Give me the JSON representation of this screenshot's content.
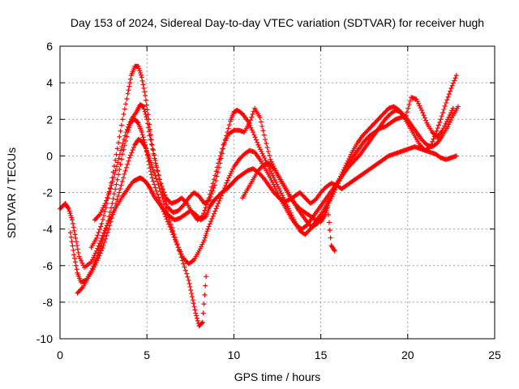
{
  "chart_data": {
    "type": "scatter",
    "title": "Day 153 of 2024, Sidereal Day-to-day VTEC variation (SDTVAR) for receiver hugh",
    "xlabel": "GPS time / hours",
    "ylabel": "SDTVAR / TECUs",
    "xlim": [
      0,
      25
    ],
    "ylim": [
      -10,
      6
    ],
    "xticks": [
      "0",
      "5",
      "10",
      "15",
      "20",
      "25"
    ],
    "yticks": [
      "-10",
      "-8",
      "-6",
      "-4",
      "-2",
      "0",
      "2",
      "4",
      "6"
    ],
    "grid": true,
    "marker": "plus",
    "color": "#ff0000",
    "series": [
      {
        "x": [
          0.0,
          0.3,
          0.5,
          0.7,
          0.9,
          1.1,
          1.4,
          1.8,
          2.1,
          2.4,
          2.7,
          3.0,
          3.3,
          3.6,
          3.9,
          4.2,
          4.4,
          4.6,
          4.8,
          5.0,
          5.2,
          5.4,
          5.7,
          6.0,
          6.3,
          6.6,
          6.9,
          7.2,
          7.5,
          7.8,
          8.1,
          8.4,
          8.6,
          8.8,
          9.0,
          9.3,
          9.6,
          9.8,
          10.0,
          10.2,
          10.5,
          10.8,
          11.1,
          11.4,
          11.7,
          12.0,
          12.3,
          12.6,
          12.9,
          13.2,
          13.5,
          13.8,
          14.1,
          14.4,
          14.7,
          15.0,
          15.3,
          15.6,
          15.9,
          16.2,
          16.5,
          16.8,
          17.1,
          17.4,
          17.7,
          18.0,
          18.3,
          18.6,
          18.9,
          19.2,
          19.5,
          19.8,
          20.1,
          20.4,
          20.7,
          21.0,
          21.3,
          21.6,
          21.9,
          22.2,
          22.5,
          22.8
        ],
        "y": [
          -2.9,
          -2.6,
          -2.9,
          -3.5,
          -4.5,
          -5.5,
          -6.1,
          -5.8,
          -5.2,
          -4.5,
          -3.8,
          -3.2,
          -2.7,
          -2.2,
          -1.8,
          -1.4,
          -1.3,
          -1.2,
          -1.3,
          -1.5,
          -1.8,
          -2.2,
          -2.6,
          -3.0,
          -3.3,
          -3.5,
          -3.4,
          -3.2,
          -3.0,
          -3.2,
          -3.5,
          -3.3,
          -2.8,
          -2.5,
          -2.3,
          -2.0,
          -1.8,
          -1.6,
          -1.4,
          -1.2,
          -1.0,
          -0.8,
          -0.7,
          -0.9,
          -1.2,
          -1.6,
          -2.0,
          -2.3,
          -2.5,
          -2.4,
          -2.2,
          -2.0,
          -2.3,
          -2.6,
          -2.4,
          -2.0,
          -1.7,
          -1.5,
          -1.6,
          -1.8,
          -1.6,
          -1.4,
          -1.2,
          -1.0,
          -0.8,
          -0.6,
          -0.4,
          -0.2,
          0.0,
          0.1,
          0.2,
          0.3,
          0.4,
          0.5,
          0.4,
          0.3,
          0.2,
          0.1,
          -0.1,
          -0.2,
          -0.1,
          0.0
        ]
      },
      {
        "x": [
          0.6,
          0.8,
          1.0,
          1.2,
          1.5,
          1.8,
          2.1,
          2.4,
          2.7,
          3.0,
          3.3,
          3.6,
          3.9,
          4.1,
          4.3,
          4.5,
          4.7,
          4.9,
          5.1,
          5.3,
          5.6,
          5.9,
          6.2,
          6.5,
          6.8,
          7.1,
          7.4,
          7.7,
          8.0,
          8.3,
          8.5,
          8.8,
          9.1,
          9.4,
          9.7,
          10.0,
          10.3,
          10.6,
          10.9,
          11.2,
          11.5,
          11.8,
          12.1,
          12.4,
          12.7,
          13.0,
          13.3,
          13.6,
          13.9,
          14.2,
          14.5,
          14.8,
          15.1,
          15.4,
          15.7,
          16.0,
          16.3,
          16.6,
          16.9,
          17.2,
          17.5,
          17.8,
          18.1,
          18.4,
          18.7,
          19.0,
          19.3,
          19.6,
          19.9,
          20.2,
          20.5,
          20.8,
          21.1,
          21.4,
          21.7,
          22.0,
          22.3,
          22.6,
          22.9
        ],
        "y": [
          -4.2,
          -5.4,
          -6.4,
          -6.9,
          -6.8,
          -6.3,
          -5.6,
          -4.8,
          -3.8,
          -2.6,
          -1.3,
          0.1,
          1.3,
          1.9,
          2.0,
          1.8,
          1.3,
          0.6,
          -0.3,
          -1.2,
          -2.1,
          -2.9,
          -3.6,
          -4.3,
          -5.0,
          -5.6,
          -5.9,
          -5.7,
          -5.2,
          -4.6,
          -4.0,
          -3.3,
          -2.6,
          -1.9,
          -1.2,
          -0.6,
          -0.2,
          0.1,
          0.3,
          0.2,
          -0.2,
          -0.7,
          -1.2,
          -1.8,
          -2.4,
          -2.9,
          -3.4,
          -3.8,
          -4.0,
          -3.8,
          -3.4,
          -3.0,
          -2.6,
          -2.2,
          -1.8,
          -1.4,
          -1.0,
          -0.6,
          -0.3,
          0.0,
          0.4,
          0.8,
          1.2,
          1.6,
          2.0,
          2.3,
          2.5,
          2.4,
          2.1,
          1.7,
          1.3,
          0.9,
          0.6,
          0.5,
          0.7,
          1.1,
          1.6,
          2.2,
          2.7
        ]
      },
      {
        "x": [
          1.0,
          1.3,
          1.6,
          1.9,
          2.2,
          2.5,
          2.8,
          3.1,
          3.4,
          3.7,
          4.0,
          4.3,
          4.5,
          4.7,
          4.9,
          5.1,
          5.3,
          5.6,
          5.9,
          6.2,
          6.5,
          6.8,
          7.1,
          7.4,
          7.6,
          7.8,
          8.0,
          8.2,
          8.4
        ],
        "y": [
          -7.5,
          -7.2,
          -6.7,
          -6.2,
          -5.6,
          -4.9,
          -4.0,
          -3.0,
          -2.0,
          -1.0,
          -0.1,
          0.6,
          0.9,
          0.8,
          0.5,
          0.0,
          -0.6,
          -1.4,
          -2.3,
          -3.2,
          -4.1,
          -5.0,
          -5.9,
          -6.8,
          -7.7,
          -8.6,
          -9.3,
          -9.1,
          -6.6
        ]
      },
      {
        "x": [
          1.8,
          2.1,
          2.4,
          2.7,
          3.0,
          3.3,
          3.6,
          3.9,
          4.1,
          4.3,
          4.5,
          4.7,
          4.9,
          5.1,
          5.3,
          5.6,
          5.9,
          6.2,
          6.5,
          6.8,
          7.1,
          7.4,
          7.7,
          8.0,
          8.3,
          8.6,
          8.9,
          9.2,
          9.5,
          9.8,
          10.0,
          10.2,
          10.5,
          10.8,
          11.1,
          11.4,
          11.7,
          12.0,
          12.3,
          12.6,
          12.9,
          13.2,
          13.5,
          13.8,
          14.1,
          14.4,
          14.7,
          15.0,
          15.3,
          15.6,
          15.9,
          16.2,
          16.5,
          16.8,
          17.1,
          17.4,
          17.7,
          18.0,
          18.3,
          18.6,
          18.9,
          19.2,
          19.5,
          19.8,
          20.1,
          20.4,
          20.7,
          21.0,
          21.3,
          21.6,
          21.9,
          22.2,
          22.5,
          22.8
        ],
        "y": [
          -5.0,
          -4.5,
          -3.7,
          -2.6,
          -1.2,
          0.4,
          2.0,
          3.4,
          4.4,
          4.9,
          4.9,
          4.3,
          3.3,
          2.0,
          0.6,
          -0.8,
          -2.0,
          -2.8,
          -3.1,
          -3.0,
          -2.7,
          -2.3,
          -2.0,
          -2.2,
          -2.6,
          -2.4,
          -1.6,
          -0.4,
          0.9,
          1.9,
          2.4,
          2.5,
          2.3,
          1.9,
          1.3,
          0.6,
          0.0,
          -0.6,
          -1.2,
          -1.8,
          -2.4,
          -3.0,
          -3.6,
          -4.1,
          -4.3,
          -4.0,
          -3.6,
          -3.2,
          -2.7,
          -2.2,
          -1.6,
          -1.0,
          -0.4,
          0.2,
          0.7,
          1.1,
          1.4,
          1.7,
          2.0,
          2.3,
          2.6,
          2.7,
          2.5,
          2.1,
          1.6,
          1.1,
          0.6,
          0.3,
          0.5,
          1.2,
          2.0,
          2.9,
          3.7,
          4.4
        ]
      },
      {
        "x": [
          2.0,
          2.3,
          2.6,
          2.9,
          3.2,
          3.5,
          3.8,
          4.1,
          4.4,
          4.6,
          4.8,
          5.0,
          5.2,
          5.5,
          5.8,
          6.1,
          6.4,
          6.7,
          7.0,
          7.3,
          7.6,
          7.9,
          8.2,
          8.5,
          8.8,
          9.1,
          9.4,
          9.7,
          10.0,
          10.3,
          10.6,
          10.9,
          11.2,
          11.5,
          11.8,
          12.1,
          12.4,
          12.7,
          13.0,
          13.3,
          13.6,
          13.9,
          14.2,
          14.5,
          14.8,
          15.1,
          15.4,
          15.7,
          16.0,
          16.3,
          16.6,
          16.9,
          17.2,
          17.5,
          17.8,
          18.1,
          18.4,
          18.7,
          19.0,
          19.3,
          19.6,
          19.9,
          20.2,
          20.5,
          20.8,
          21.1,
          21.4,
          21.7,
          22.0,
          22.3,
          22.6
        ],
        "y": [
          -3.5,
          -3.2,
          -2.6,
          -1.8,
          -0.8,
          0.3,
          1.3,
          2.0,
          2.4,
          2.8,
          2.7,
          2.0,
          0.9,
          -0.4,
          -1.5,
          -2.3,
          -2.6,
          -2.5,
          -2.3,
          -2.6,
          -3.1,
          -3.5,
          -3.3,
          -2.5,
          -1.5,
          -0.4,
          0.6,
          1.2,
          1.4,
          1.4,
          1.3,
          1.8,
          2.6,
          2.1,
          0.9,
          -0.2,
          -0.8,
          -1.3,
          -1.8,
          -2.3,
          -2.8,
          -3.2,
          -3.6,
          -3.9,
          -3.7,
          -3.2,
          -2.7,
          -2.1,
          -1.5,
          -0.9,
          -0.4,
          0.0,
          0.4,
          0.8,
          1.1,
          1.3,
          1.5,
          1.6,
          1.8,
          2.0,
          2.1,
          2.2,
          3.2,
          3.1,
          2.5,
          1.8,
          1.3,
          1.0,
          1.4,
          2.0,
          2.6
        ]
      },
      {
        "x": [
          10.5,
          10.8,
          11.1,
          11.4,
          11.7,
          12.0,
          12.3,
          12.6,
          12.9,
          13.2,
          13.5,
          13.8,
          14.1,
          14.4,
          14.7,
          15.0,
          15.2,
          15.4,
          15.6,
          15.8
        ],
        "y": [
          -2.3,
          -1.8,
          -1.3,
          -0.8,
          -0.5,
          -0.4,
          -0.7,
          -1.2,
          -1.7,
          -2.2,
          -2.6,
          -2.9,
          -3.1,
          -3.3,
          -3.5,
          -3.6,
          -3.3,
          -2.8,
          -4.9,
          -5.2
        ]
      }
    ]
  }
}
